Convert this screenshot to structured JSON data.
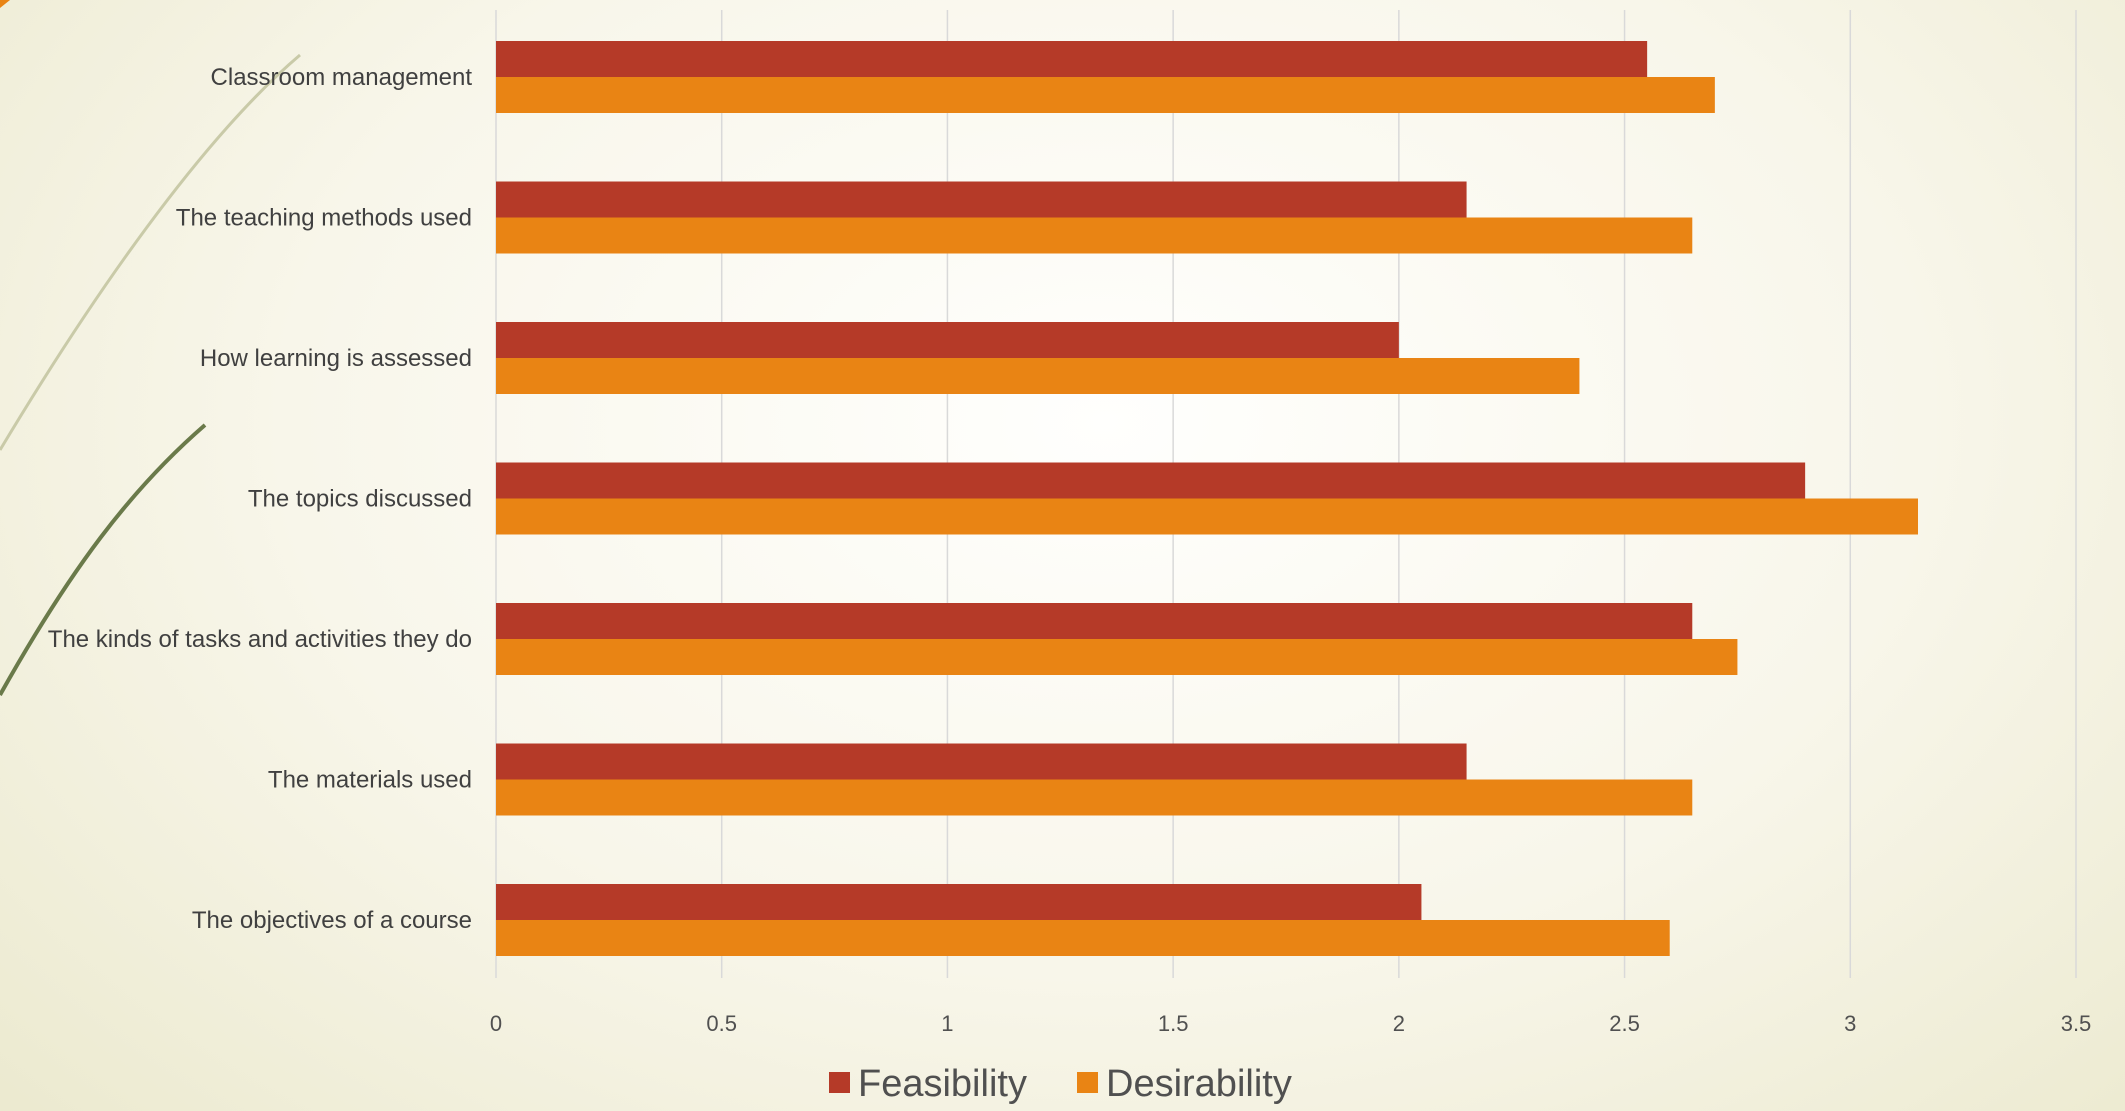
{
  "colors": {
    "feasibility": "#b53a28",
    "desirability": "#e98414",
    "gridline": "#d9d9d9",
    "accent": "#e98414"
  },
  "chart_data": {
    "type": "bar",
    "orientation": "horizontal",
    "categories": [
      "Classroom management",
      "The teaching methods used",
      "How learning is assessed",
      "The topics discussed",
      "The kinds of tasks and activities they do",
      "The materials used",
      "The objectives of a course"
    ],
    "series": [
      {
        "name": "Feasibility",
        "values": [
          2.55,
          2.15,
          2.0,
          2.9,
          2.65,
          2.15,
          2.05
        ]
      },
      {
        "name": "Desirability",
        "values": [
          2.7,
          2.65,
          2.4,
          3.15,
          2.75,
          2.65,
          2.6
        ]
      }
    ],
    "x_ticks": [
      "0",
      "0.5",
      "1",
      "1.5",
      "2",
      "2.5",
      "3",
      "3.5"
    ],
    "xlim": [
      0,
      3.5
    ],
    "grid": true,
    "legend_position": "bottom",
    "title": "",
    "xlabel": "",
    "ylabel": ""
  }
}
